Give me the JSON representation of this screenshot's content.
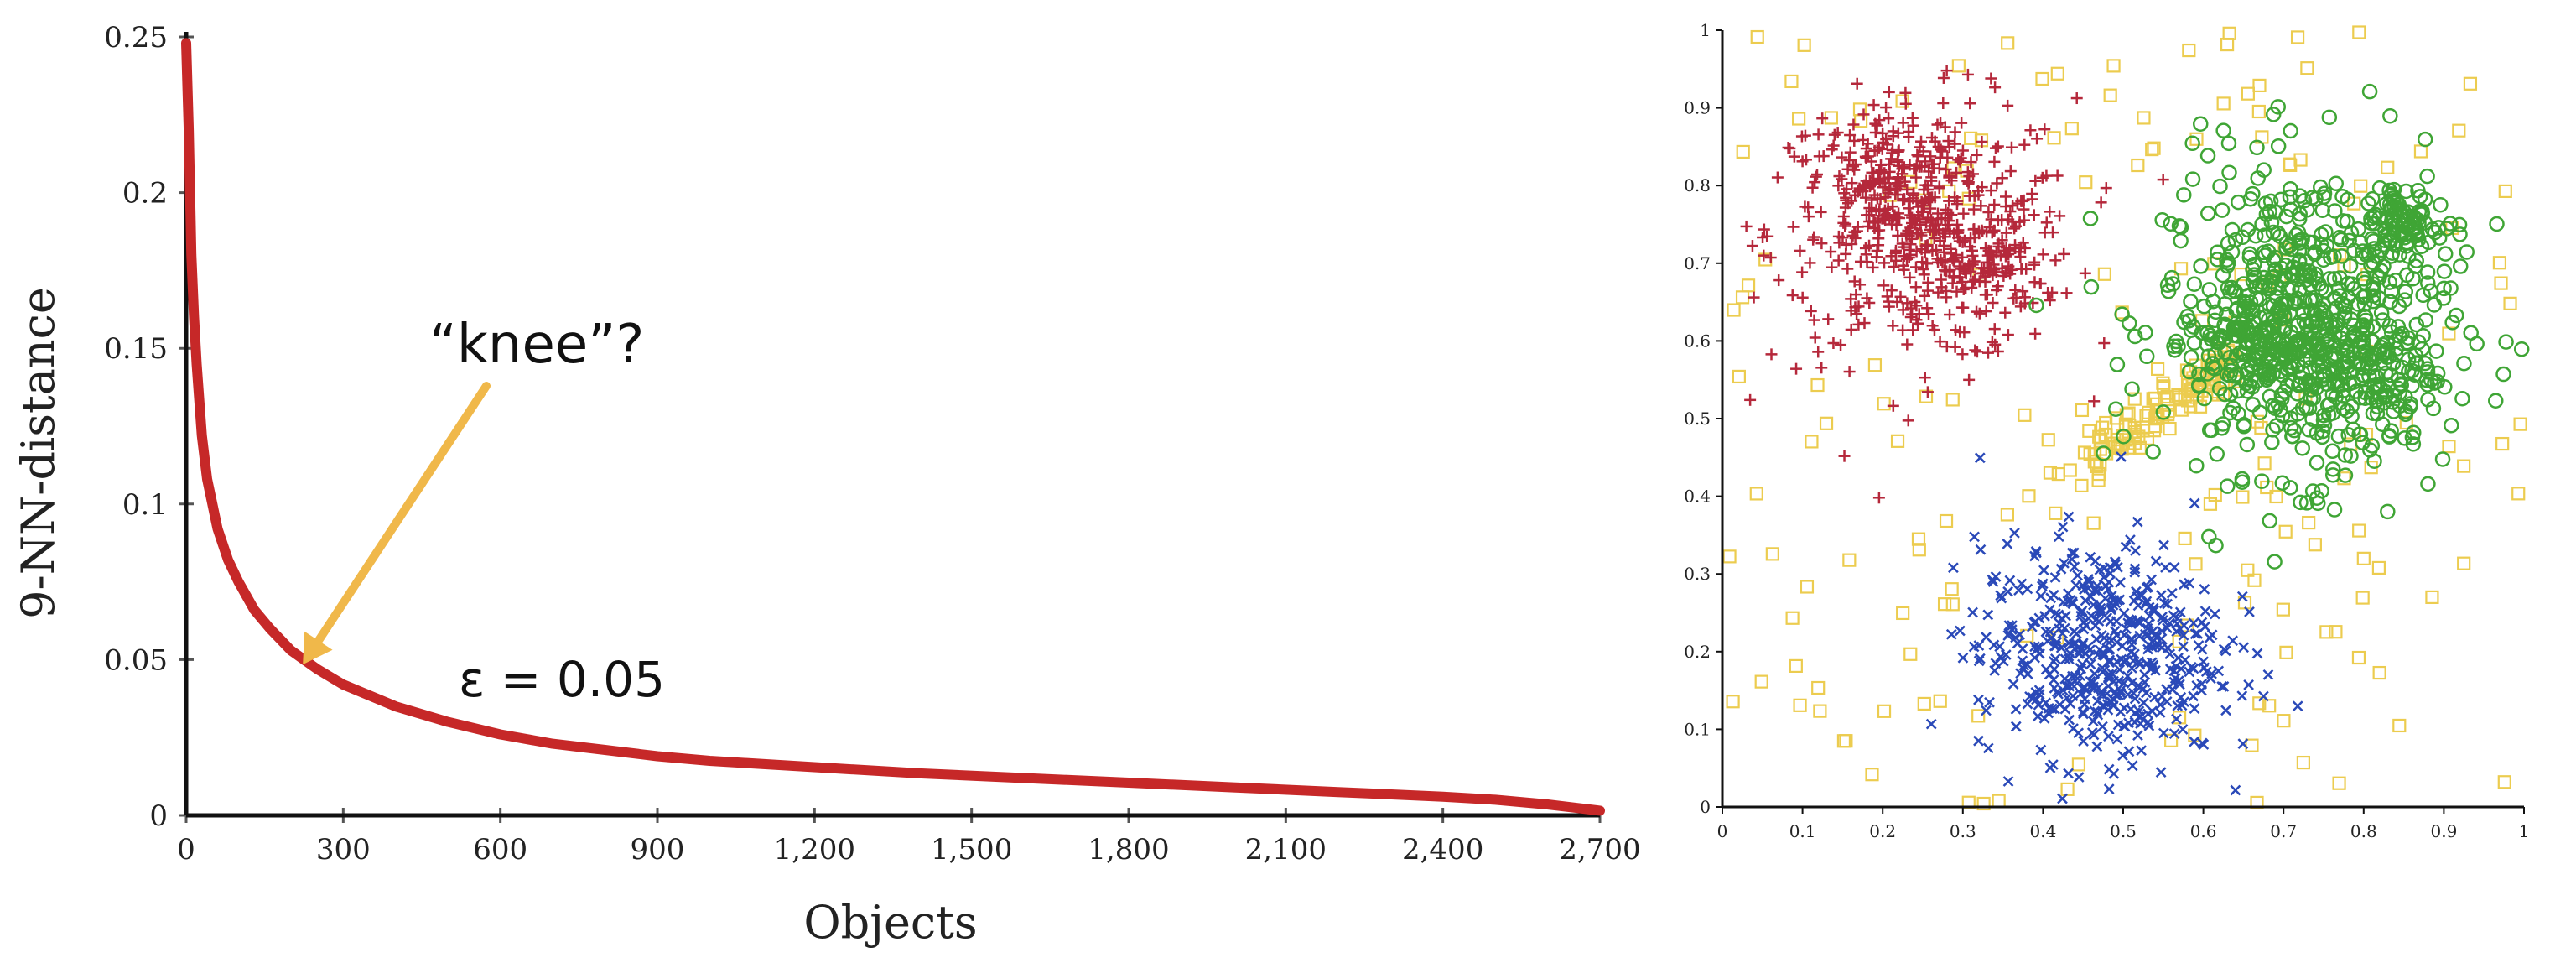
{
  "chart_data": [
    {
      "type": "line",
      "title": "",
      "xlabel": "Objects",
      "ylabel": "9-NN-distance",
      "xlim": [
        0,
        2700
      ],
      "ylim": [
        0,
        0.25
      ],
      "x_ticks": [
        0,
        300,
        600,
        900,
        1200,
        1500,
        1800,
        2100,
        2400,
        2700
      ],
      "x_tick_labels": [
        "0",
        "300",
        "600",
        "900",
        "1,200",
        "1,500",
        "1,800",
        "2,100",
        "2,400",
        "2,700"
      ],
      "y_ticks": [
        0,
        0.05,
        0.1,
        0.15,
        0.2,
        0.25
      ],
      "y_tick_labels": [
        "0",
        "0.05",
        "0.1",
        "0.15",
        "0.2",
        "0.25"
      ],
      "series": [
        {
          "color": "#c62828",
          "x": [
            0,
            5,
            10,
            15,
            20,
            30,
            40,
            60,
            80,
            100,
            130,
            160,
            200,
            250,
            300,
            400,
            500,
            600,
            700,
            800,
            900,
            1000,
            1200,
            1400,
            1600,
            1800,
            2000,
            2200,
            2400,
            2500,
            2600,
            2650,
            2700
          ],
          "y": [
            0.248,
            0.22,
            0.18,
            0.16,
            0.145,
            0.122,
            0.108,
            0.092,
            0.082,
            0.075,
            0.066,
            0.06,
            0.053,
            0.047,
            0.042,
            0.035,
            0.03,
            0.026,
            0.023,
            0.021,
            0.019,
            0.0175,
            0.0155,
            0.0135,
            0.012,
            0.0105,
            0.009,
            0.0075,
            0.006,
            0.005,
            0.0035,
            0.0025,
            0.0015
          ]
        }
      ],
      "annotations": [
        {
          "text": "“knee”?",
          "x": 210,
          "y": 0.049
        },
        {
          "text": "ε = 0.05",
          "x": 900,
          "y": 0.045
        }
      ],
      "annotation_arrow_color": "#f0b84a"
    },
    {
      "type": "scatter",
      "title": "",
      "xlabel": "",
      "ylabel": "",
      "xlim": [
        0,
        1
      ],
      "ylim": [
        0,
        1
      ],
      "x_ticks": [
        0,
        0.1,
        0.2,
        0.3,
        0.4,
        0.5,
        0.6,
        0.7,
        0.8,
        0.9,
        1
      ],
      "x_tick_labels": [
        "0",
        "0.1",
        "0.2",
        "0.3",
        "0.4",
        "0.5",
        "0.6",
        "0.7",
        "0.8",
        "0.9",
        "1"
      ],
      "y_ticks": [
        0,
        0.1,
        0.2,
        0.3,
        0.4,
        0.5,
        0.6,
        0.7,
        0.8,
        0.9,
        1
      ],
      "y_tick_labels": [
        "0",
        "0.1",
        "0.2",
        "0.3",
        "0.4",
        "0.5",
        "0.6",
        "0.7",
        "0.8",
        "0.9",
        "1"
      ],
      "clusters": [
        {
          "marker": "plus",
          "color": "#b5283b",
          "cx": 0.25,
          "cy": 0.74,
          "sx": 0.095,
          "sy": 0.085,
          "count": 420,
          "dense_cores": [
            [
              0.2,
              0.8,
              0.045
            ],
            [
              0.32,
              0.7,
              0.04
            ]
          ]
        },
        {
          "marker": "circle",
          "color": "#3fa535",
          "cx": 0.73,
          "cy": 0.63,
          "sx": 0.09,
          "sy": 0.1,
          "count": 560,
          "dense_cores": [
            [
              0.66,
              0.6,
              0.04
            ],
            [
              0.8,
              0.56,
              0.045
            ],
            [
              0.85,
              0.75,
              0.025
            ]
          ]
        },
        {
          "marker": "x",
          "color": "#2a49b8",
          "cx": 0.47,
          "cy": 0.2,
          "sx": 0.075,
          "sy": 0.07,
          "count": 520,
          "dense_cores": []
        },
        {
          "marker": "square",
          "color": "#eccc4f",
          "cx": 0.5,
          "cy": 0.5,
          "sx": 1,
          "sy": 1,
          "count": 190,
          "dense_cores": []
        }
      ]
    }
  ]
}
